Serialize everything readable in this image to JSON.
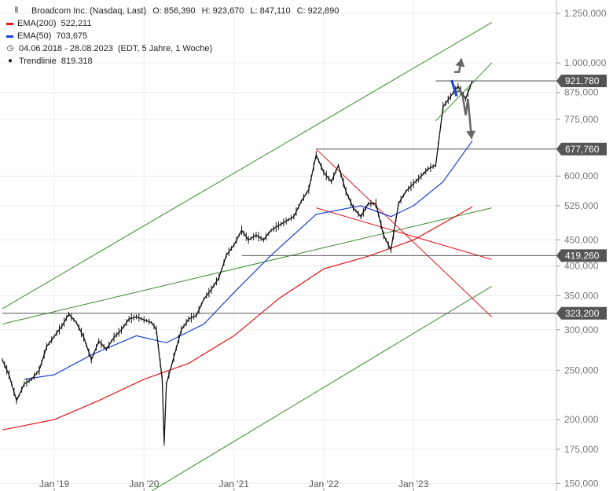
{
  "legend": {
    "title": "Broadcom Inc. (Nasdaq, Last)",
    "ohlc": {
      "o": "O: 856,390",
      "h": "H: 923,670",
      "l": "L: 847,110",
      "c": "C: 922,890"
    },
    "ema200_label": "EMA(200)",
    "ema200_value": "522,211",
    "ema200_color": "#e8121a",
    "ema50_label": "EMA(50)",
    "ema50_value": "703,675",
    "ema50_color": "#1a3fd6",
    "range_label": "04.06.2018 - 28.08.2023",
    "range_detail": "(EDT, 5 Jahre, 1 Woche)",
    "trend_label": "Trendlinie",
    "trend_value": "819.318",
    "bar_icon": "candle-bars-icon",
    "clock_icon": "clock-icon",
    "dot_icon": "dot-icon"
  },
  "chart_data": {
    "type": "line",
    "y_scale": "log",
    "ylim": [
      145000,
      1300000
    ],
    "xlim": [
      "2018-06-04",
      "2023-08-28"
    ],
    "x_ticks": [
      {
        "label": "Jan '19",
        "date": "2019-01-01"
      },
      {
        "label": "Jan '20",
        "date": "2020-01-01"
      },
      {
        "label": "Jan '21",
        "date": "2021-01-01"
      },
      {
        "label": "Jan '22",
        "date": "2022-01-01"
      },
      {
        "label": "Jan '23",
        "date": "2023-01-01"
      }
    ],
    "y_ticks": [
      {
        "label": "1.250,000",
        "value": 1250000
      },
      {
        "label": "1.000,000",
        "value": 1000000
      },
      {
        "label": "875,000",
        "value": 875000
      },
      {
        "label": "775,000",
        "value": 775000
      },
      {
        "label": "600,000",
        "value": 600000
      },
      {
        "label": "525,000",
        "value": 525000
      },
      {
        "label": "450,000",
        "value": 450000
      },
      {
        "label": "400,000",
        "value": 400000
      },
      {
        "label": "350,000",
        "value": 350000
      },
      {
        "label": "300,000",
        "value": 300000
      },
      {
        "label": "250,000",
        "value": 250000
      },
      {
        "label": "200,000",
        "value": 200000
      },
      {
        "label": "175,000",
        "value": 175000
      },
      {
        "label": "150,000",
        "value": 150000
      }
    ],
    "price_markers": [
      {
        "label": "921,780",
        "value": 921780,
        "start": "2023-04-01"
      },
      {
        "label": "677,760",
        "value": 677760,
        "start": "2021-12-01"
      },
      {
        "label": "419,260",
        "value": 419260,
        "start": "2021-02-01"
      },
      {
        "label": "323,200",
        "value": 323200,
        "start": "2018-06-04"
      }
    ],
    "price_series": [
      {
        "date": "2018-06-04",
        "value": 262000
      },
      {
        "date": "2018-07-01",
        "value": 245000
      },
      {
        "date": "2018-08-01",
        "value": 218000
      },
      {
        "date": "2018-09-01",
        "value": 235000
      },
      {
        "date": "2018-10-01",
        "value": 240000
      },
      {
        "date": "2018-11-01",
        "value": 250000
      },
      {
        "date": "2018-12-01",
        "value": 278000
      },
      {
        "date": "2019-02-01",
        "value": 305000
      },
      {
        "date": "2019-03-01",
        "value": 322000
      },
      {
        "date": "2019-04-01",
        "value": 310000
      },
      {
        "date": "2019-05-01",
        "value": 290000
      },
      {
        "date": "2019-06-01",
        "value": 262000
      },
      {
        "date": "2019-07-01",
        "value": 285000
      },
      {
        "date": "2019-08-01",
        "value": 275000
      },
      {
        "date": "2019-09-01",
        "value": 290000
      },
      {
        "date": "2019-10-01",
        "value": 300000
      },
      {
        "date": "2019-11-01",
        "value": 315000
      },
      {
        "date": "2019-12-01",
        "value": 318000
      },
      {
        "date": "2020-02-01",
        "value": 310000
      },
      {
        "date": "2020-02-20",
        "value": 300000
      },
      {
        "date": "2020-03-15",
        "value": 240000
      },
      {
        "date": "2020-03-23",
        "value": 180000
      },
      {
        "date": "2020-04-01",
        "value": 235000
      },
      {
        "date": "2020-05-01",
        "value": 265000
      },
      {
        "date": "2020-06-01",
        "value": 300000
      },
      {
        "date": "2020-07-01",
        "value": 315000
      },
      {
        "date": "2020-08-01",
        "value": 320000
      },
      {
        "date": "2020-09-01",
        "value": 345000
      },
      {
        "date": "2020-10-01",
        "value": 360000
      },
      {
        "date": "2020-11-01",
        "value": 380000
      },
      {
        "date": "2020-12-01",
        "value": 420000
      },
      {
        "date": "2021-01-01",
        "value": 440000
      },
      {
        "date": "2021-02-01",
        "value": 470000
      },
      {
        "date": "2021-03-01",
        "value": 450000
      },
      {
        "date": "2021-04-01",
        "value": 460000
      },
      {
        "date": "2021-05-01",
        "value": 450000
      },
      {
        "date": "2021-06-01",
        "value": 470000
      },
      {
        "date": "2021-07-01",
        "value": 480000
      },
      {
        "date": "2021-08-01",
        "value": 490000
      },
      {
        "date": "2021-09-01",
        "value": 500000
      },
      {
        "date": "2021-10-01",
        "value": 535000
      },
      {
        "date": "2021-11-01",
        "value": 565000
      },
      {
        "date": "2021-12-01",
        "value": 660000
      },
      {
        "date": "2022-01-01",
        "value": 610000
      },
      {
        "date": "2022-02-01",
        "value": 585000
      },
      {
        "date": "2022-03-01",
        "value": 630000
      },
      {
        "date": "2022-04-01",
        "value": 560000
      },
      {
        "date": "2022-05-01",
        "value": 520000
      },
      {
        "date": "2022-06-01",
        "value": 500000
      },
      {
        "date": "2022-07-01",
        "value": 530000
      },
      {
        "date": "2022-08-01",
        "value": 530000
      },
      {
        "date": "2022-09-01",
        "value": 460000
      },
      {
        "date": "2022-10-01",
        "value": 430000
      },
      {
        "date": "2022-11-01",
        "value": 530000
      },
      {
        "date": "2022-12-01",
        "value": 560000
      },
      {
        "date": "2023-01-01",
        "value": 580000
      },
      {
        "date": "2023-02-01",
        "value": 600000
      },
      {
        "date": "2023-03-01",
        "value": 620000
      },
      {
        "date": "2023-04-01",
        "value": 630000
      },
      {
        "date": "2023-05-01",
        "value": 820000
      },
      {
        "date": "2023-06-01",
        "value": 860000
      },
      {
        "date": "2023-07-01",
        "value": 900000
      },
      {
        "date": "2023-08-01",
        "value": 850000
      },
      {
        "date": "2023-08-28",
        "value": 922890
      }
    ],
    "ema50_series": [
      {
        "date": "2018-09-01",
        "value": 240000
      },
      {
        "date": "2019-01-01",
        "value": 245000
      },
      {
        "date": "2019-06-01",
        "value": 268000
      },
      {
        "date": "2019-12-01",
        "value": 292000
      },
      {
        "date": "2020-04-01",
        "value": 283000
      },
      {
        "date": "2020-09-01",
        "value": 308000
      },
      {
        "date": "2021-01-01",
        "value": 355000
      },
      {
        "date": "2021-06-01",
        "value": 420000
      },
      {
        "date": "2021-12-01",
        "value": 505000
      },
      {
        "date": "2022-06-01",
        "value": 525000
      },
      {
        "date": "2022-10-01",
        "value": 500000
      },
      {
        "date": "2023-01-01",
        "value": 525000
      },
      {
        "date": "2023-05-01",
        "value": 585000
      },
      {
        "date": "2023-08-28",
        "value": 703675
      }
    ],
    "ema200_series": [
      {
        "date": "2018-06-04",
        "value": 191000
      },
      {
        "date": "2019-01-01",
        "value": 200000
      },
      {
        "date": "2019-07-01",
        "value": 218000
      },
      {
        "date": "2020-01-01",
        "value": 240000
      },
      {
        "date": "2020-07-01",
        "value": 258000
      },
      {
        "date": "2021-01-01",
        "value": 292000
      },
      {
        "date": "2021-07-01",
        "value": 345000
      },
      {
        "date": "2022-01-01",
        "value": 395000
      },
      {
        "date": "2022-07-01",
        "value": 418000
      },
      {
        "date": "2023-01-01",
        "value": 450000
      },
      {
        "date": "2023-08-28",
        "value": 522211
      }
    ],
    "trend_lines": [
      {
        "color": "#3a8a2e",
        "start": {
          "date": "2018-06-04",
          "value": 330000
        },
        "end": {
          "date": "2023-11-15",
          "value": 1200000
        }
      },
      {
        "color": "#3a8a2e",
        "start": {
          "date": "2018-06-04",
          "value": 308000
        },
        "end": {
          "date": "2023-11-15",
          "value": 520000
        }
      },
      {
        "color": "#3a8a2e",
        "start": {
          "date": "2023-04-01",
          "value": 770000
        },
        "end": {
          "date": "2023-11-15",
          "value": 1000000
        }
      },
      {
        "color": "#3a8a2e",
        "start": {
          "date": "2020-02-01",
          "value": 145000
        },
        "end": {
          "date": "2023-11-15",
          "value": 365000
        }
      },
      {
        "color": "#e8121a",
        "start": {
          "date": "2021-12-01",
          "value": 677760
        },
        "end": {
          "date": "2023-11-15",
          "value": 318000
        }
      },
      {
        "color": "#e8121a",
        "start": {
          "date": "2021-12-01",
          "value": 520000
        },
        "end": {
          "date": "2023-11-15",
          "value": 412000
        }
      }
    ],
    "arrows": [
      {
        "color": "#666666",
        "points": [
          {
            "date": "2023-06-15",
            "value": 875000
          },
          {
            "date": "2023-07-10",
            "value": 882000
          },
          {
            "date": "2023-07-20",
            "value": 860000
          },
          {
            "date": "2023-08-01",
            "value": 790000
          },
          {
            "date": "2023-08-10",
            "value": 850000
          },
          {
            "date": "2023-08-25",
            "value": 710000
          }
        ]
      },
      {
        "color": "#666666",
        "points": [
          {
            "date": "2023-06-15",
            "value": 960000
          },
          {
            "date": "2023-07-05",
            "value": 960000
          },
          {
            "date": "2023-07-15",
            "value": 1020000
          }
        ]
      },
      {
        "color": "#1a3fd6",
        "points": [
          {
            "date": "2023-06-05",
            "value": 925000
          },
          {
            "date": "2023-06-25",
            "value": 860000
          }
        ]
      }
    ]
  }
}
